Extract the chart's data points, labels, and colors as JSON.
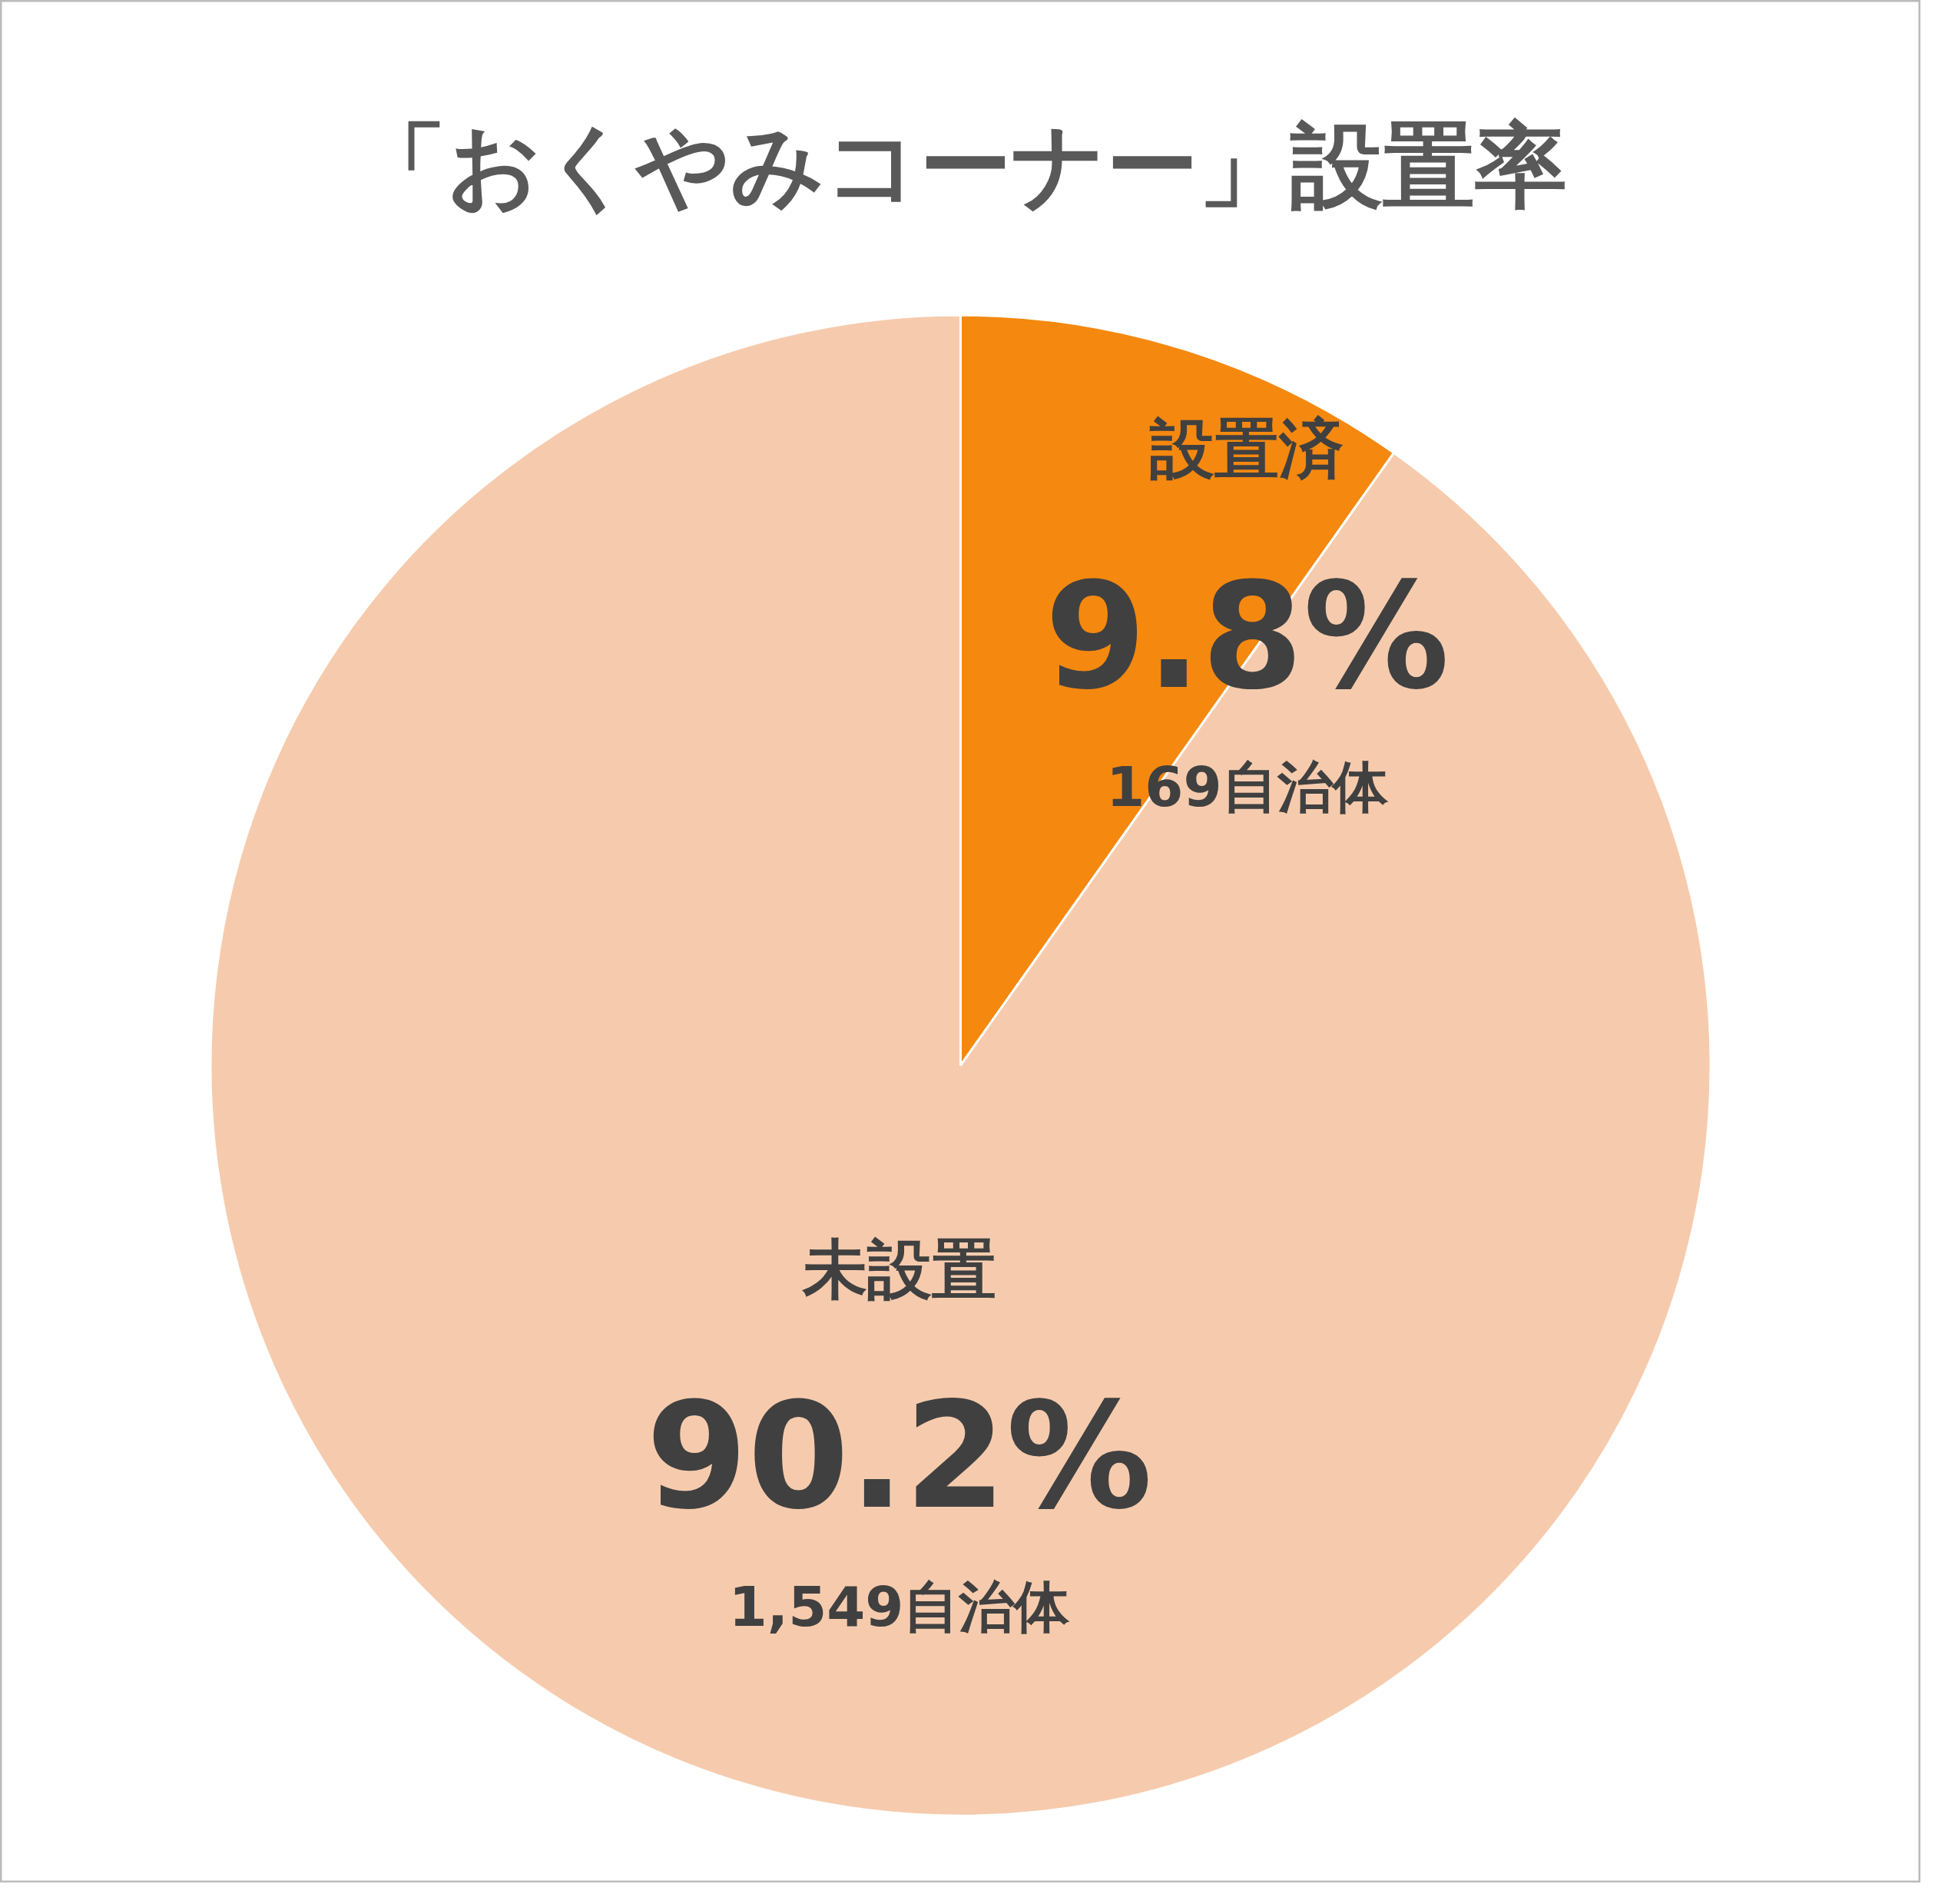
{
  "chart_data": {
    "type": "pie",
    "title": "「おくやみコーナー」設置率",
    "categories": [
      "設置済",
      "未設置"
    ],
    "values": [
      9.8,
      90.2
    ],
    "colors": [
      "#f5880f",
      "#f6cbad"
    ],
    "value_labels": [
      "9.8%",
      "90.2%"
    ],
    "annotations": [
      "169自治体",
      "1,549自治体"
    ]
  }
}
